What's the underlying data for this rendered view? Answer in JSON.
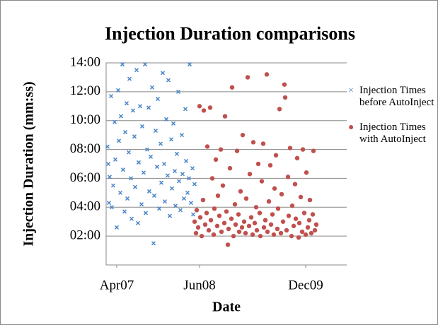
{
  "chart_data": {
    "type": "scatter",
    "title": "Injection Duration comparisons",
    "x_label": "Date",
    "y_label": "Injection Duration (mm:ss)",
    "xlim": [
      2007.1,
      2010.5
    ],
    "xticks": [
      {
        "value": 2007.25,
        "label": "Apr07"
      },
      {
        "value": 2008.42,
        "label": "Jun08"
      },
      {
        "value": 2009.92,
        "label": "Dec09"
      }
    ],
    "ylim": [
      0,
      14
    ],
    "yticks": [
      {
        "value": 2,
        "label": "02:00"
      },
      {
        "value": 4,
        "label": "04:00"
      },
      {
        "value": 6,
        "label": "06:00"
      },
      {
        "value": 8,
        "label": "08:00"
      },
      {
        "value": 10,
        "label": "10:00"
      },
      {
        "value": 12,
        "label": "12:00"
      },
      {
        "value": 14,
        "label": "14:00"
      }
    ],
    "grid": true,
    "series": [
      {
        "name": "Injection Times before AutoInject",
        "color": "#4a86c8",
        "marker": "x",
        "x": [
          2007.12,
          2007.13,
          2007.14,
          2007.15,
          2007.17,
          2007.18,
          2007.2,
          2007.22,
          2007.23,
          2007.25,
          2007.27,
          2007.28,
          2007.3,
          2007.31,
          2007.33,
          2007.34,
          2007.36,
          2007.37,
          2007.39,
          2007.4,
          2007.42,
          2007.43,
          2007.45,
          2007.46,
          2007.48,
          2007.5,
          2007.51,
          2007.53,
          2007.55,
          2007.56,
          2007.58,
          2007.6,
          2007.61,
          2007.63,
          2007.65,
          2007.66,
          2007.68,
          2007.7,
          2007.71,
          2007.73,
          2007.75,
          2007.77,
          2007.78,
          2007.8,
          2007.82,
          2007.83,
          2007.85,
          2007.87,
          2007.88,
          2007.9,
          2007.92,
          2007.93,
          2007.95,
          2007.97,
          2007.98,
          2008.0,
          2008.02,
          2008.03,
          2008.05,
          2008.07,
          2008.08,
          2008.1,
          2008.12,
          2008.13,
          2008.15,
          2008.17,
          2008.18,
          2008.2,
          2008.22,
          2008.23,
          2008.25,
          2008.27,
          2008.28,
          2008.3,
          2008.32,
          2008.33,
          2008.35
        ],
        "values": [
          8.2,
          7.0,
          4.3,
          6.1,
          11.7,
          4.0,
          5.5,
          9.9,
          7.3,
          2.6,
          12.1,
          8.6,
          5.0,
          10.3,
          13.9,
          6.6,
          3.7,
          9.2,
          11.2,
          4.6,
          7.8,
          12.9,
          6.0,
          3.2,
          10.7,
          8.9,
          5.4,
          13.5,
          2.9,
          7.1,
          11.0,
          4.2,
          9.6,
          6.4,
          13.9,
          3.6,
          8.0,
          10.9,
          5.1,
          7.5,
          12.3,
          1.5,
          4.8,
          9.3,
          6.8,
          11.5,
          3.9,
          8.4,
          5.7,
          13.3,
          7.0,
          4.4,
          10.1,
          6.2,
          12.8,
          3.4,
          8.7,
          5.3,
          9.8,
          6.5,
          4.1,
          7.7,
          12.0,
          5.8,
          3.8,
          9.0,
          6.3,
          4.6,
          10.8,
          7.2,
          5.0,
          6.0,
          13.9,
          4.3,
          6.7,
          3.5,
          5.6
        ]
      },
      {
        "name": "Injection Times with AutoInject",
        "color": "#c0504d",
        "marker": "circle",
        "x": [
          2008.35,
          2008.37,
          2008.38,
          2008.4,
          2008.42,
          2008.43,
          2008.45,
          2008.47,
          2008.48,
          2008.5,
          2008.52,
          2008.53,
          2008.55,
          2008.57,
          2008.58,
          2008.6,
          2008.62,
          2008.63,
          2008.65,
          2008.67,
          2008.68,
          2008.7,
          2008.72,
          2008.73,
          2008.75,
          2008.77,
          2008.78,
          2008.8,
          2008.82,
          2008.83,
          2008.85,
          2008.87,
          2008.88,
          2008.9,
          2008.92,
          2008.93,
          2008.95,
          2008.97,
          2008.98,
          2009.0,
          2009.02,
          2009.03,
          2009.05,
          2009.07,
          2009.08,
          2009.1,
          2009.12,
          2009.13,
          2009.15,
          2009.17,
          2009.18,
          2009.2,
          2009.22,
          2009.23,
          2009.25,
          2009.27,
          2009.28,
          2009.3,
          2009.32,
          2009.33,
          2009.35,
          2009.37,
          2009.38,
          2009.4,
          2009.42,
          2009.43,
          2009.45,
          2009.47,
          2009.48,
          2009.5,
          2009.52,
          2009.53,
          2009.55,
          2009.57,
          2009.58,
          2009.6,
          2009.62,
          2009.63,
          2009.65,
          2009.67,
          2009.68,
          2009.7,
          2009.72,
          2009.73,
          2009.75,
          2009.77,
          2009.78,
          2009.8,
          2009.82,
          2009.83,
          2009.85,
          2009.87,
          2009.88,
          2009.9,
          2009.92,
          2009.93,
          2009.95,
          2009.97,
          2009.98,
          2010.0,
          2010.02,
          2010.03,
          2010.05,
          2010.07
        ],
        "values": [
          3.0,
          2.2,
          3.8,
          2.6,
          11.0,
          3.3,
          2.0,
          4.5,
          10.7,
          2.8,
          3.6,
          8.2,
          2.4,
          10.9,
          3.1,
          6.0,
          2.1,
          3.9,
          7.3,
          2.7,
          4.8,
          3.4,
          8.0,
          2.3,
          5.5,
          2.9,
          10.3,
          3.7,
          1.4,
          2.5,
          6.7,
          3.2,
          12.3,
          2.0,
          4.2,
          2.8,
          7.9,
          3.5,
          2.3,
          5.1,
          2.6,
          9.0,
          3.0,
          2.2,
          4.6,
          13.0,
          2.7,
          6.3,
          3.3,
          2.1,
          8.5,
          2.9,
          4.0,
          2.4,
          7.0,
          3.6,
          2.0,
          5.8,
          8.4,
          2.6,
          3.1,
          13.2,
          2.3,
          4.4,
          6.9,
          2.8,
          3.5,
          2.1,
          5.3,
          7.6,
          2.5,
          3.9,
          10.8,
          2.2,
          4.9,
          3.0,
          12.5,
          11.6,
          2.4,
          6.1,
          3.4,
          8.1,
          2.0,
          4.1,
          2.7,
          5.6,
          3.2,
          7.4,
          1.9,
          2.9,
          4.7,
          2.3,
          8.0,
          3.6,
          2.1,
          6.4,
          2.6,
          3.1,
          4.5,
          2.2,
          3.5,
          7.9,
          2.4,
          2.8
        ]
      }
    ]
  }
}
